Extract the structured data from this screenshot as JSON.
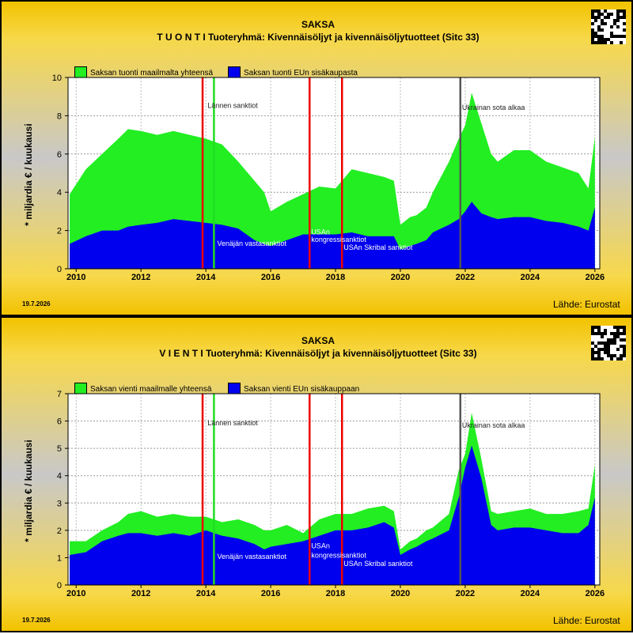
{
  "date_stamp": "19.7.2026",
  "source": "Lähde: Eurostat",
  "colors": {
    "total": "#22ee22",
    "eu": "#0000ee",
    "sanction_line": "#ee0000",
    "lannen_line": "#22dd22",
    "war_line": "#555555",
    "plot_bg": "#ffffff"
  },
  "chart_data": [
    {
      "type": "area",
      "title": "SAKSA",
      "subtitle": "T U O N T I Tuoteryhmä: Kivennäisöljyt ja kivennäisöljytuotteet (Sitc 33)",
      "ylabel": "* miljardia € / kuukausi",
      "xlabel": "",
      "xlim": [
        2009.75,
        2026.15
      ],
      "ylim": [
        0,
        10
      ],
      "yticks": [
        "0",
        "2",
        "4",
        "6",
        "8",
        "10"
      ],
      "xticks": [
        "2010",
        "2012",
        "2014",
        "2016",
        "2018",
        "2020",
        "2022",
        "2024",
        "2026"
      ],
      "grid": true,
      "legend_position": "top-left",
      "x": [
        2009.8,
        2010.3,
        2010.8,
        2011.3,
        2011.6,
        2012.0,
        2012.5,
        2013.0,
        2013.5,
        2014.0,
        2014.5,
        2015.0,
        2015.5,
        2015.8,
        2016.0,
        2016.5,
        2017.0,
        2017.5,
        2018.0,
        2018.5,
        2019.0,
        2019.5,
        2019.8,
        2020.0,
        2020.3,
        2020.5,
        2020.8,
        2021.0,
        2021.5,
        2021.8,
        2022.0,
        2022.2,
        2022.5,
        2022.8,
        2023.0,
        2023.5,
        2024.0,
        2024.5,
        2025.0,
        2025.5,
        2025.8,
        2026.0
      ],
      "series": [
        {
          "name": "Saksan tuonti maailmalta yhteensä",
          "values": [
            3.9,
            5.2,
            6.0,
            6.8,
            7.3,
            7.2,
            7.0,
            7.2,
            7.0,
            6.8,
            6.5,
            5.6,
            4.6,
            4.0,
            3.0,
            3.5,
            3.9,
            4.3,
            4.2,
            5.2,
            5.0,
            4.8,
            4.6,
            2.3,
            2.7,
            2.8,
            3.2,
            4.0,
            5.6,
            6.8,
            7.5,
            9.2,
            7.6,
            6.0,
            5.6,
            6.2,
            6.2,
            5.6,
            5.3,
            5.0,
            4.2,
            6.9
          ]
        },
        {
          "name": "Saksan tuonti EUn sisäkaupasta",
          "values": [
            1.3,
            1.7,
            2.0,
            2.0,
            2.2,
            2.3,
            2.4,
            2.6,
            2.5,
            2.4,
            2.3,
            2.1,
            1.5,
            1.3,
            1.2,
            1.5,
            1.8,
            1.8,
            1.8,
            1.9,
            1.7,
            1.7,
            1.7,
            1.0,
            1.2,
            1.3,
            1.5,
            1.9,
            2.3,
            2.6,
            3.0,
            3.5,
            2.9,
            2.7,
            2.6,
            2.7,
            2.7,
            2.5,
            2.4,
            2.2,
            2.0,
            3.2
          ]
        }
      ],
      "vlines": [
        {
          "x": 2013.9,
          "kind": "sanction_line"
        },
        {
          "x": 2014.25,
          "kind": "lannen_line"
        },
        {
          "x": 2017.2,
          "kind": "sanction_line"
        },
        {
          "x": 2018.2,
          "kind": "sanction_line"
        },
        {
          "x": 2021.85,
          "kind": "war_line"
        }
      ],
      "annotations": [
        {
          "text": "Lännen sanktiot",
          "x": 2014.05,
          "y": 8.4
        },
        {
          "text": "Venäjän vastasanktiot",
          "x": 2014.35,
          "y": 1.2
        },
        {
          "text": "USAn",
          "x": 2017.25,
          "y": 1.8
        },
        {
          "text": "kongressisanktiot",
          "x": 2017.25,
          "y": 1.4
        },
        {
          "text": "USAn Skribal sanktiot",
          "x": 2018.25,
          "y": 1.0
        },
        {
          "text": "Ukrainan sota alkaa",
          "x": 2021.9,
          "y": 8.3
        }
      ]
    },
    {
      "type": "area",
      "title": "SAKSA",
      "subtitle": "V I E N T I Tuoteryhmä: Kivennäisöljyt ja kivennäisöljytuotteet (Sitc 33)",
      "ylabel": "* miljardia € / kuukausi",
      "xlabel": "",
      "xlim": [
        2009.75,
        2026.15
      ],
      "ylim": [
        0,
        7
      ],
      "yticks": [
        "0",
        "1",
        "2",
        "3",
        "4",
        "5",
        "6",
        "7"
      ],
      "xticks": [
        "2010",
        "2012",
        "2014",
        "2016",
        "2018",
        "2020",
        "2022",
        "2024",
        "2026"
      ],
      "grid": true,
      "legend_position": "top-left",
      "x": [
        2009.8,
        2010.3,
        2010.8,
        2011.3,
        2011.6,
        2012.0,
        2012.5,
        2013.0,
        2013.5,
        2014.0,
        2014.5,
        2015.0,
        2015.5,
        2015.8,
        2016.0,
        2016.5,
        2017.0,
        2017.5,
        2018.0,
        2018.5,
        2019.0,
        2019.5,
        2019.8,
        2020.0,
        2020.3,
        2020.5,
        2020.8,
        2021.0,
        2021.5,
        2021.8,
        2022.0,
        2022.2,
        2022.5,
        2022.8,
        2023.0,
        2023.5,
        2024.0,
        2024.5,
        2025.0,
        2025.5,
        2025.8,
        2026.0
      ],
      "series": [
        {
          "name": "Saksan vienti maailmalle yhteensä",
          "values": [
            1.6,
            1.6,
            2.0,
            2.3,
            2.6,
            2.7,
            2.5,
            2.6,
            2.5,
            2.5,
            2.3,
            2.4,
            2.2,
            2.0,
            2.0,
            2.2,
            1.9,
            2.4,
            2.6,
            2.6,
            2.8,
            2.9,
            2.7,
            1.3,
            1.6,
            1.7,
            2.0,
            2.1,
            2.6,
            4.2,
            4.8,
            6.3,
            4.6,
            2.7,
            2.6,
            2.7,
            2.8,
            2.6,
            2.6,
            2.7,
            2.8,
            4.4
          ]
        },
        {
          "name": "Saksan vienti EUn sisäkauppaan",
          "values": [
            1.1,
            1.2,
            1.6,
            1.8,
            1.9,
            1.9,
            1.8,
            1.9,
            1.8,
            2.0,
            1.8,
            1.7,
            1.5,
            1.3,
            1.4,
            1.5,
            1.6,
            1.8,
            2.0,
            2.0,
            2.1,
            2.3,
            2.1,
            1.1,
            1.3,
            1.4,
            1.6,
            1.7,
            2.0,
            3.2,
            4.3,
            5.1,
            3.9,
            2.2,
            2.0,
            2.1,
            2.1,
            2.0,
            1.9,
            1.9,
            2.2,
            3.2
          ]
        }
      ],
      "vlines": [
        {
          "x": 2013.9,
          "kind": "sanction_line"
        },
        {
          "x": 2014.25,
          "kind": "lannen_line"
        },
        {
          "x": 2017.2,
          "kind": "sanction_line"
        },
        {
          "x": 2018.2,
          "kind": "sanction_line"
        },
        {
          "x": 2021.85,
          "kind": "war_line"
        }
      ],
      "annotations": [
        {
          "text": "Lännen sanktiot",
          "x": 2014.05,
          "y": 5.85
        },
        {
          "text": "Venäjän vastasanktiot",
          "x": 2014.35,
          "y": 0.95
        },
        {
          "text": "USAn",
          "x": 2017.25,
          "y": 1.35
        },
        {
          "text": "kongressisanktiot",
          "x": 2017.25,
          "y": 1.0
        },
        {
          "text": "USAn Skribal sanktiot",
          "x": 2018.25,
          "y": 0.7
        },
        {
          "text": "Ukrainan sota alkaa",
          "x": 2021.9,
          "y": 5.75
        }
      ]
    }
  ]
}
